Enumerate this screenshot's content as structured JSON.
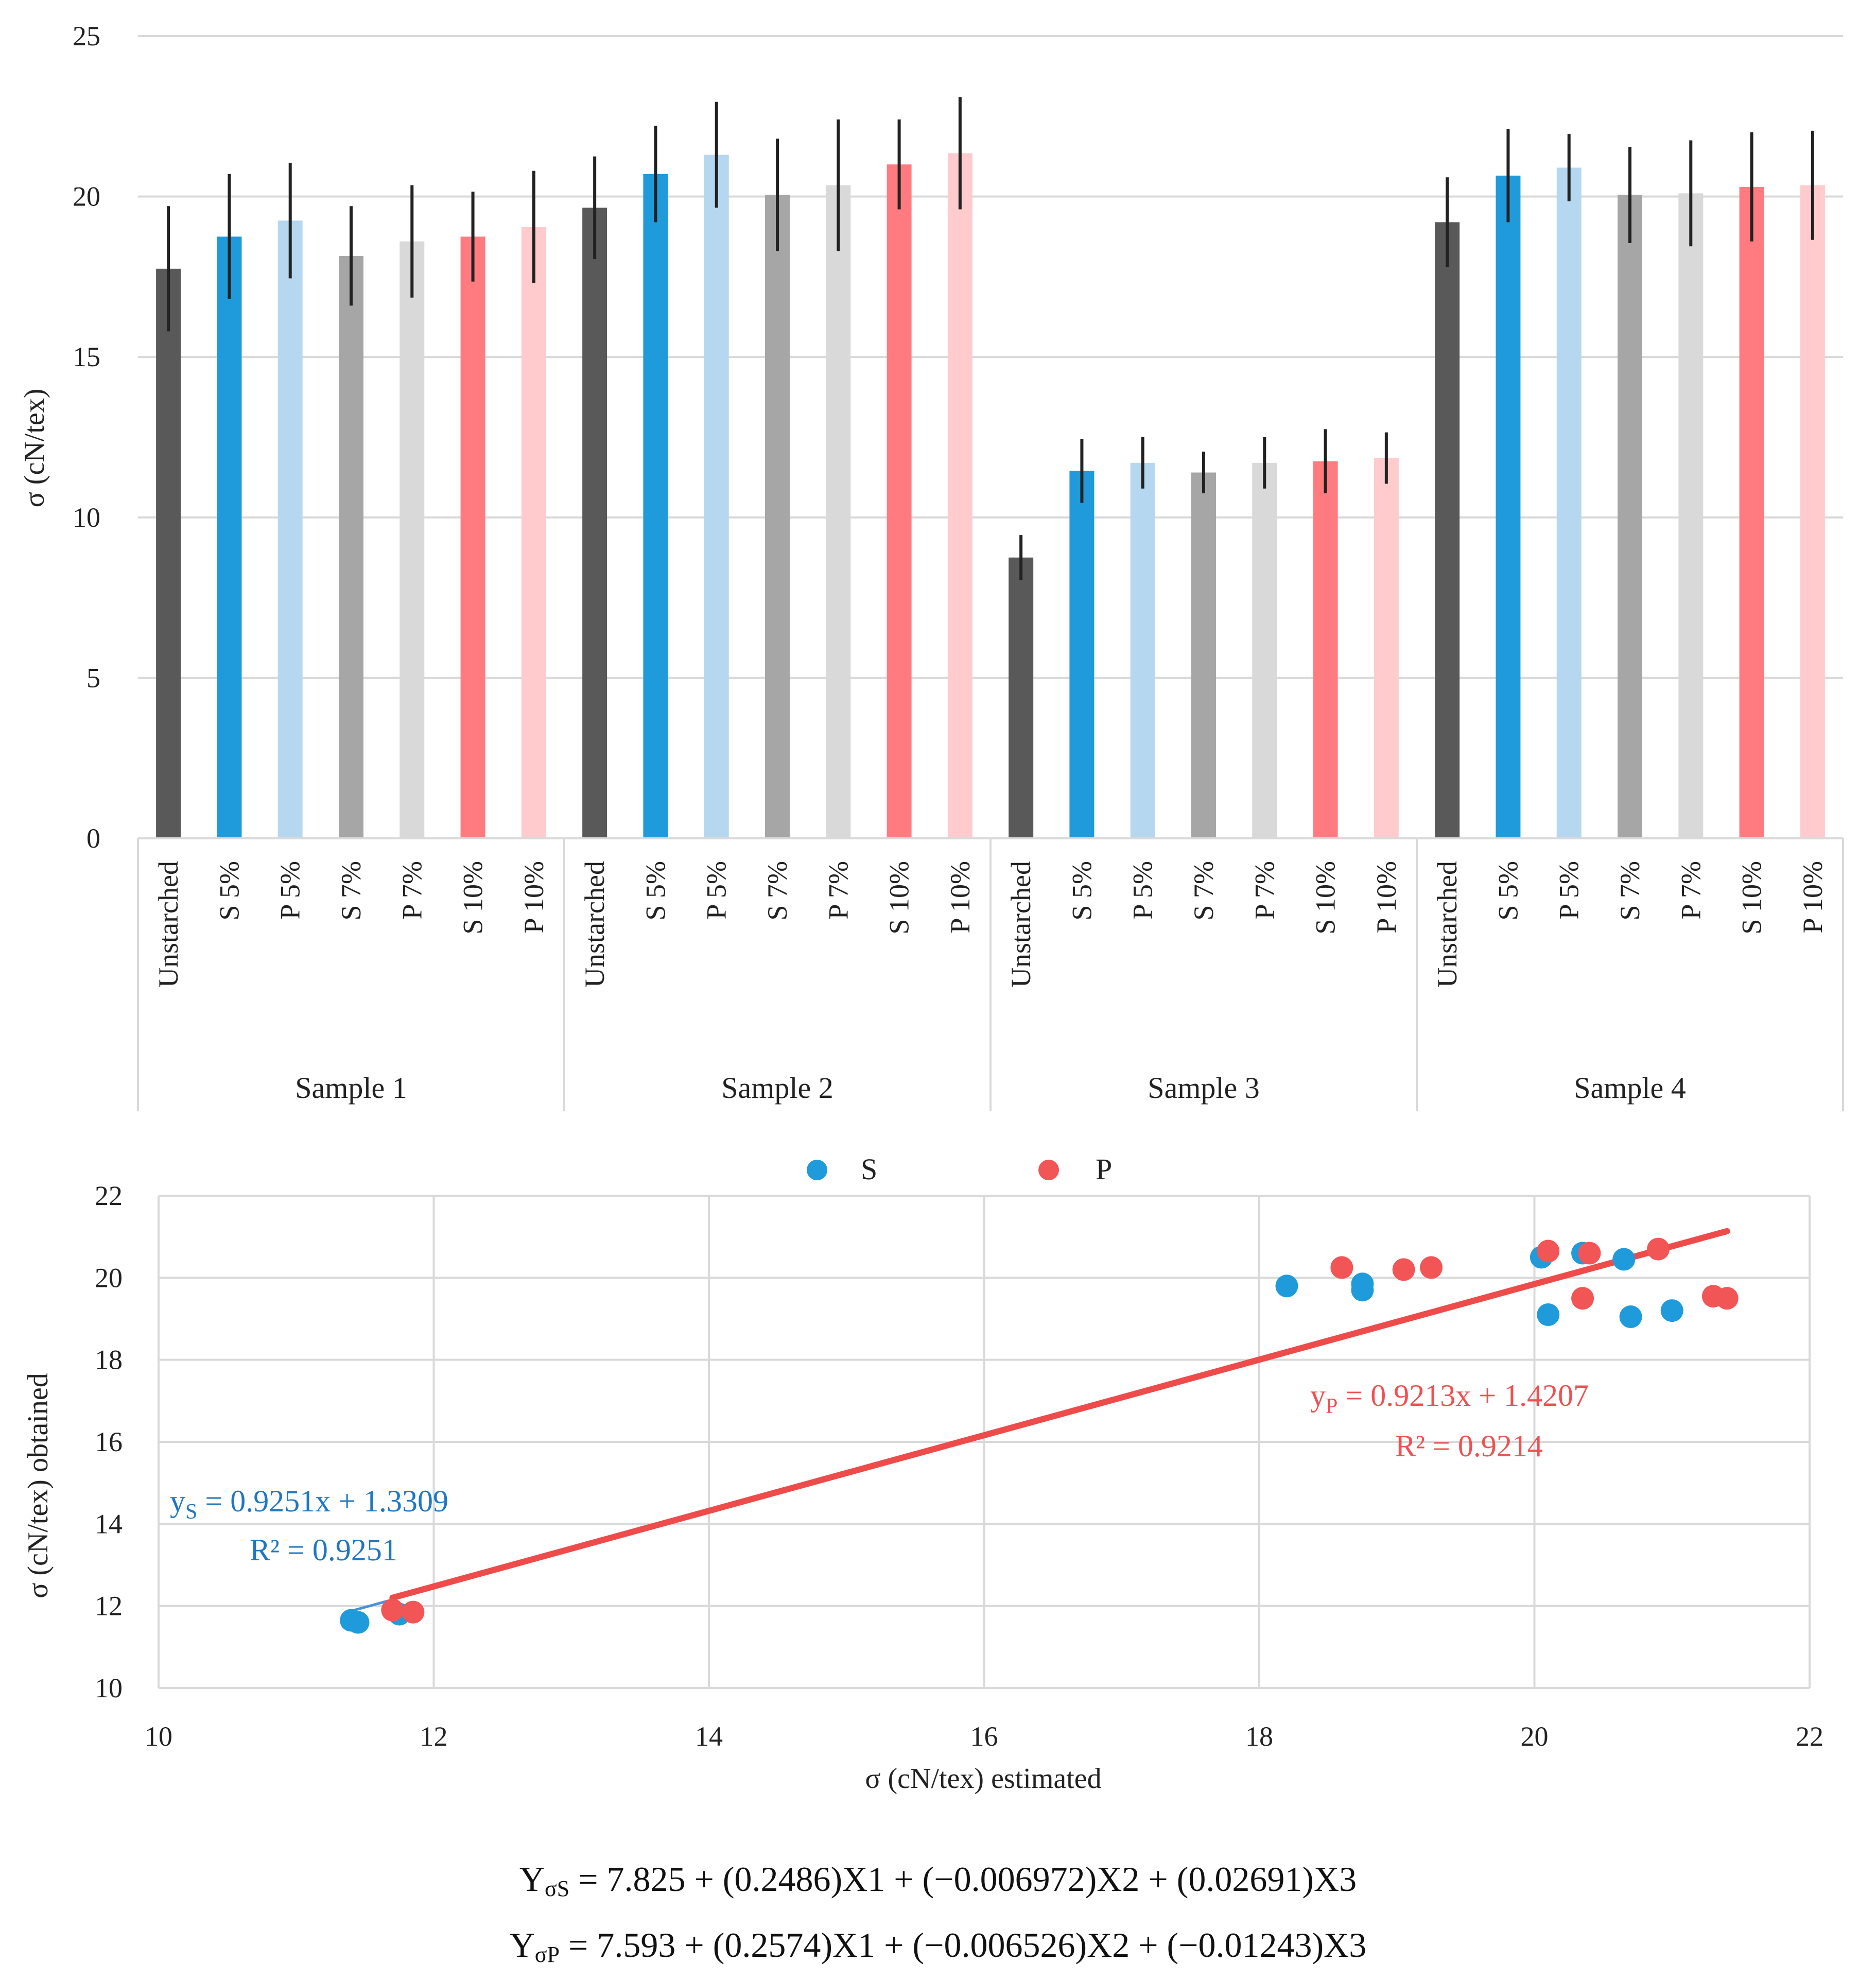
{
  "bar_chart": {
    "ylabel": "σ (cN/tex)",
    "y_ticks": [
      "0",
      "5",
      "10",
      "15",
      "20",
      "25"
    ],
    "category_labels": [
      "Unstarched",
      "S 5%",
      "P 5%",
      "S 7%",
      "P 7%",
      "S 10%",
      "P 10%"
    ],
    "groups": [
      "Sample 1",
      "Sample 2",
      "Sample 3",
      "Sample 4"
    ],
    "colors": [
      "#595959",
      "#1f9bdb",
      "#b5d8f0",
      "#a6a6a6",
      "#d9d9d9",
      "#ff7b80",
      "#ffcbcc"
    ]
  },
  "scatter_chart": {
    "xlabel": "σ (cN/tex) estimated",
    "ylabel": "σ (cN/tex) obtained",
    "x_ticks": [
      "10",
      "12",
      "14",
      "16",
      "18",
      "20",
      "22"
    ],
    "y_ticks": [
      "10",
      "12",
      "14",
      "16",
      "18",
      "20",
      "22"
    ],
    "legend": [
      {
        "label": "S",
        "color": "#1f9bdb"
      },
      {
        "label": "P",
        "color": "#f25555"
      }
    ],
    "eq_s_prefix": "y",
    "eq_s_sub": "S",
    "eq_s_rest": " = 0.9251x + 1.3309",
    "eq_s_r2": "R² = 0.9251",
    "eq_p_prefix": "y",
    "eq_p_sub": "P",
    "eq_p_rest": " = 0.9213x + 1.4207",
    "eq_p_r2": "R² = 0.9214"
  },
  "formulas": {
    "f1_y": "Y",
    "f1_sub": "σS",
    "f1_rest": " = 7.825 + (0.2486)X1 + (−0.006972)X2 + (0.02691)X3",
    "f2_y": "Y",
    "f2_sub": "σP",
    "f2_rest": " = 7.593 + (0.2574)X1 + (−0.006526)X2 + (−0.01243)X3"
  },
  "chart_data": [
    {
      "type": "bar",
      "title": "",
      "xlabel": "",
      "ylabel": "σ (cN/tex)",
      "ylim": [
        0,
        25
      ],
      "groups": [
        "Sample 1",
        "Sample 2",
        "Sample 3",
        "Sample 4"
      ],
      "categories": [
        "Unstarched",
        "S 5%",
        "P 5%",
        "S 7%",
        "P 7%",
        "S 10%",
        "P 10%"
      ],
      "series": [
        {
          "name": "Sample 1",
          "values": [
            17.75,
            18.75,
            19.25,
            18.15,
            18.6,
            18.75,
            19.05
          ],
          "errors": [
            1.95,
            1.95,
            1.8,
            1.55,
            1.75,
            1.4,
            1.75
          ]
        },
        {
          "name": "Sample 2",
          "values": [
            19.65,
            20.7,
            21.3,
            20.05,
            20.35,
            21.0,
            21.35
          ],
          "errors": [
            1.6,
            1.5,
            1.65,
            1.75,
            2.05,
            1.4,
            1.75
          ]
        },
        {
          "name": "Sample 3",
          "values": [
            8.75,
            11.45,
            11.7,
            11.4,
            11.7,
            11.75,
            11.85
          ],
          "errors": [
            0.7,
            1.0,
            0.8,
            0.65,
            0.8,
            1.0,
            0.8
          ]
        },
        {
          "name": "Sample 4",
          "values": [
            19.2,
            20.65,
            20.9,
            20.05,
            20.1,
            20.3,
            20.35
          ],
          "errors": [
            1.4,
            1.45,
            1.05,
            1.5,
            1.65,
            1.7,
            1.7
          ]
        }
      ],
      "error_bars": true,
      "grid": true
    },
    {
      "type": "scatter",
      "title": "",
      "xlabel": "σ (cN/tex) estimated",
      "ylabel": "σ (cN/tex) obtained",
      "xlim": [
        10,
        22
      ],
      "ylim": [
        10,
        22
      ],
      "legend_position": "top",
      "series": [
        {
          "name": "S",
          "points": [
            [
              11.4,
              11.65
            ],
            [
              11.45,
              11.6
            ],
            [
              11.75,
              11.8
            ],
            [
              18.2,
              19.8
            ],
            [
              18.75,
              19.85
            ],
            [
              18.75,
              19.7
            ],
            [
              20.05,
              20.5
            ],
            [
              20.1,
              19.1
            ],
            [
              20.35,
              20.6
            ],
            [
              20.65,
              20.45
            ],
            [
              20.7,
              19.05
            ],
            [
              21.0,
              19.2
            ]
          ],
          "trendline": {
            "slope": 0.9251,
            "intercept": 1.3309,
            "r2": 0.9251,
            "x_range": [
              11.4,
              21.4
            ]
          }
        },
        {
          "name": "P",
          "points": [
            [
              11.7,
              11.9
            ],
            [
              11.85,
              11.85
            ],
            [
              18.6,
              20.25
            ],
            [
              19.05,
              20.2
            ],
            [
              19.25,
              20.25
            ],
            [
              20.1,
              20.65
            ],
            [
              20.35,
              19.5
            ],
            [
              20.4,
              20.6
            ],
            [
              20.9,
              20.7
            ],
            [
              21.3,
              19.55
            ],
            [
              21.4,
              19.5
            ]
          ],
          "trendline": {
            "slope": 0.9213,
            "intercept": 1.4207,
            "r2": 0.9214,
            "x_range": [
              11.7,
              21.4
            ]
          }
        }
      ],
      "grid": true
    }
  ]
}
